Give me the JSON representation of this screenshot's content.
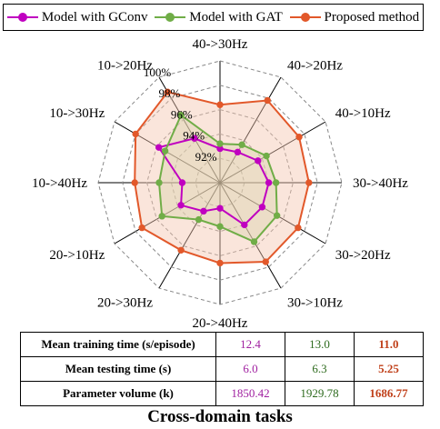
{
  "chart_data": {
    "type": "radar",
    "categories": [
      "40->30Hz",
      "40->20Hz",
      "40->10Hz",
      "30->40Hz",
      "30->20Hz",
      "30->10Hz",
      "20->40Hz",
      "20->30Hz",
      "20->10Hz",
      "10->40Hz",
      "10->30Hz",
      "10->20Hz"
    ],
    "rlim": [
      90,
      100
    ],
    "radial_ticks": [
      92,
      94,
      96,
      98,
      100
    ],
    "radial_tick_labels": [
      "92%",
      "94%",
      "96%",
      "98%",
      "100%"
    ],
    "grid": true,
    "legend_position": "top",
    "series": [
      {
        "name": "Model with GConv",
        "color": "#c000c0",
        "fill": "none",
        "values": [
          92.8,
          92.9,
          93.6,
          94.0,
          94.0,
          94.0,
          92.1,
          92.7,
          93.7,
          93.1,
          95.8,
          94.2
        ]
      },
      {
        "name": "Model with GAT",
        "color": "#70ad47",
        "fill": "#c8e0b0",
        "values": [
          93.2,
          93.6,
          94.4,
          94.6,
          95.4,
          95.6,
          93.6,
          93.5,
          95.5,
          95.0,
          95.2,
          96.4
        ]
      },
      {
        "name": "Proposed method",
        "color": "#e2582a",
        "fill": "#f5c6b0",
        "values": [
          96.4,
          97.8,
          97.5,
          97.3,
          97.4,
          97.5,
          96.6,
          96.4,
          97.4,
          97.0,
          98.0,
          98.6
        ]
      }
    ]
  },
  "table": {
    "rows": [
      {
        "label": "Mean training time (s/episode)",
        "values": [
          "12.4",
          "13.0",
          "11.0"
        ]
      },
      {
        "label": "Mean testing time (s)",
        "values": [
          "6.0",
          "6.3",
          "5.25"
        ]
      },
      {
        "label": "Parameter volume (k)",
        "values": [
          "1850.42",
          "1929.78",
          "1686.77"
        ]
      }
    ]
  },
  "caption": "Cross-domain tasks"
}
